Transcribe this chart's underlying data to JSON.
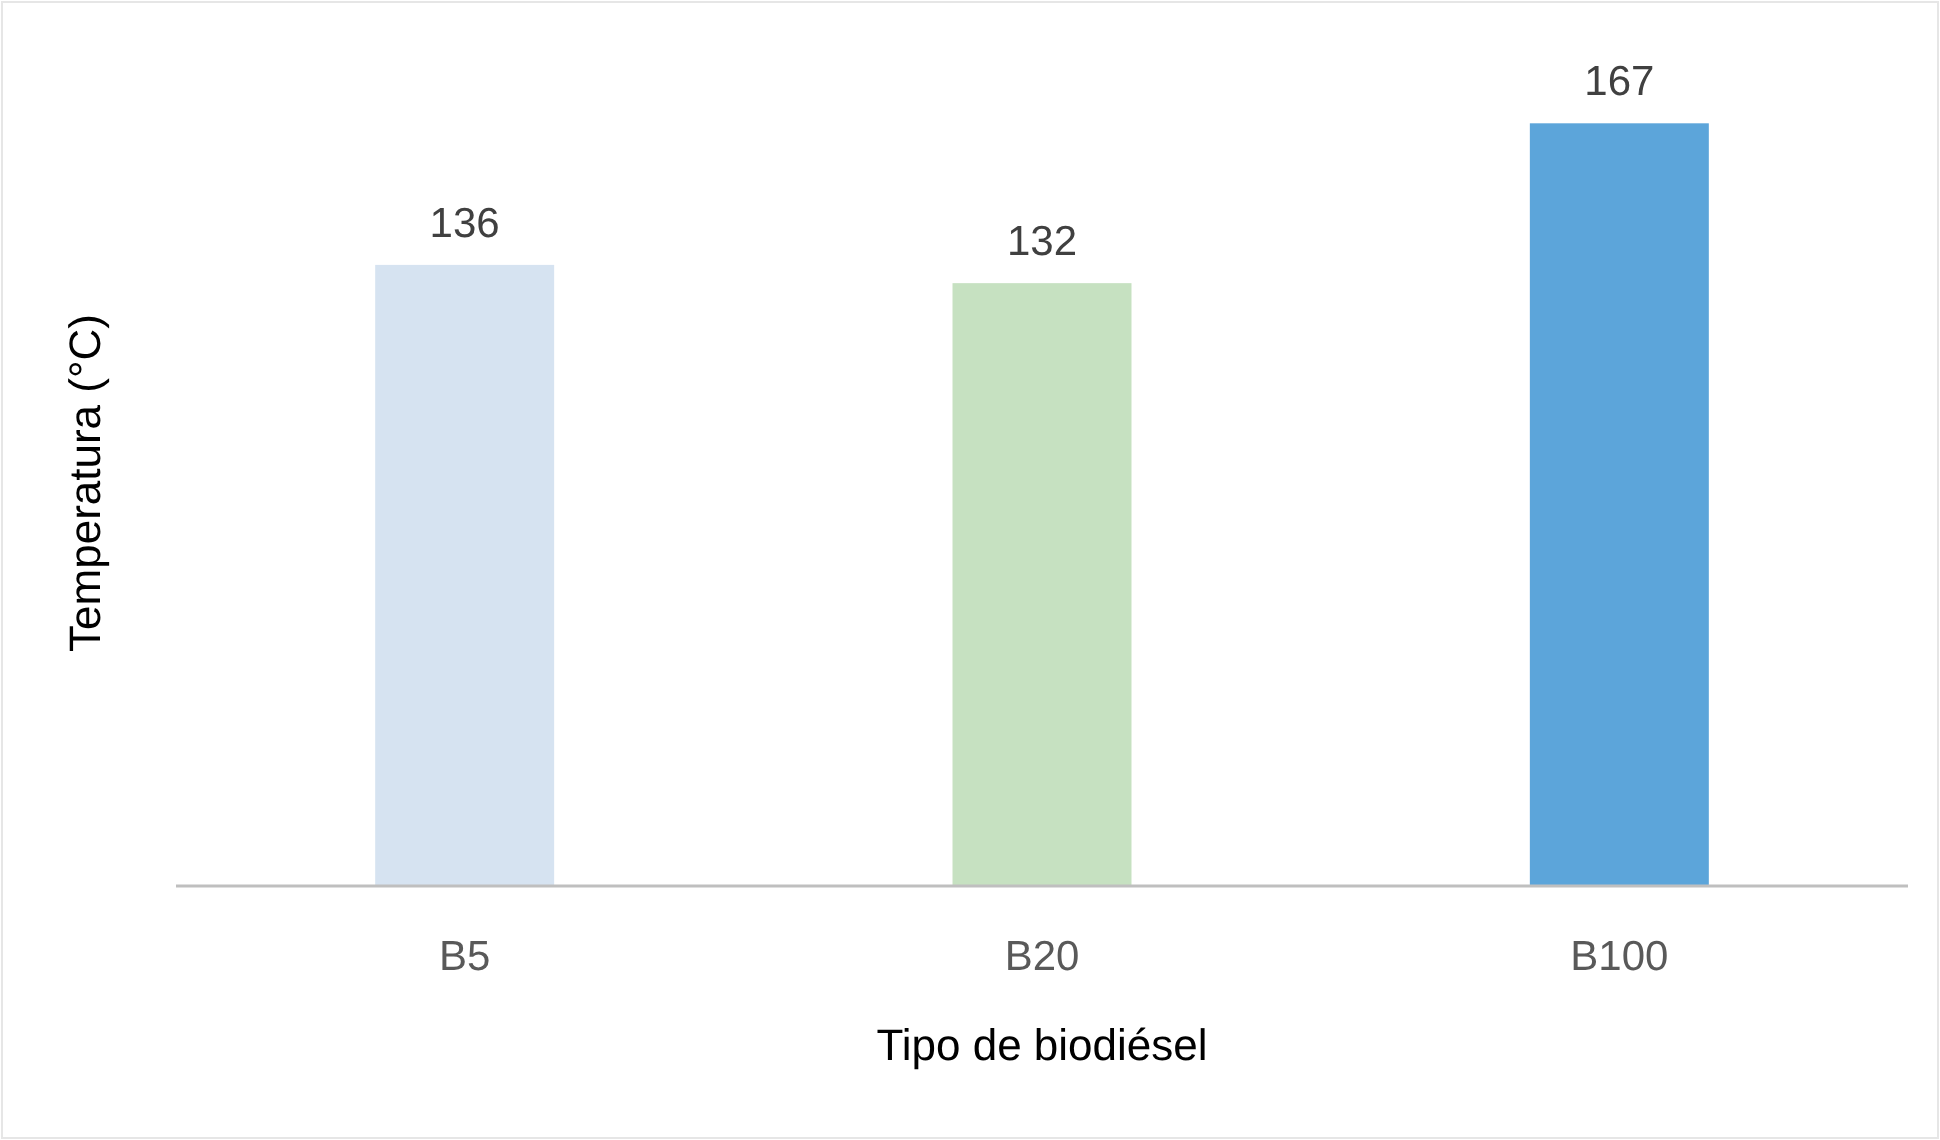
{
  "chart_data": {
    "type": "bar",
    "xlabel": "Tipo de biodiésel",
    "ylabel": "Temperatura (°C)",
    "categories": [
      "B5",
      "B20",
      "B100"
    ],
    "values": [
      136,
      132,
      167
    ],
    "colors": [
      "#d6e3f1",
      "#c6e1c1",
      "#5ca5da"
    ],
    "ylim": [
      0,
      194
    ],
    "data_labels": true
  }
}
